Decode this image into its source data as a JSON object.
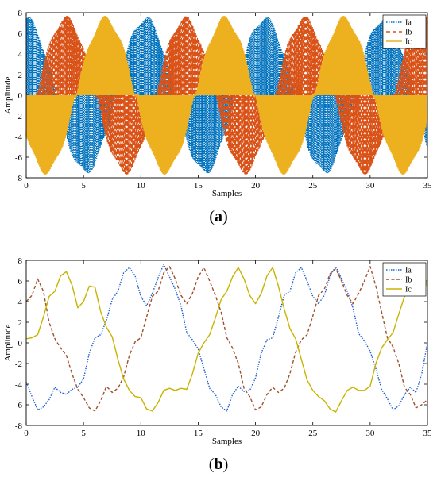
{
  "colors": {
    "ia": "#0072BD",
    "ib": "#D95319",
    "ic": "#EDB120",
    "ic_b": "#C8B400",
    "ib_b": "#A0522D",
    "ia_b": "#1F5FD0"
  },
  "chart_data": [
    {
      "type": "line",
      "caption": "a",
      "caption_text": "(a)",
      "xlabel": "Samples",
      "ylabel": "Amplitude",
      "xlim": [
        0,
        35
      ],
      "ylim": [
        -8,
        8
      ],
      "xticks": [
        0,
        5,
        10,
        15,
        20,
        25,
        30,
        35
      ],
      "yticks": [
        -8,
        -6,
        -4,
        -2,
        0,
        2,
        4,
        6,
        8
      ],
      "legend": "top-right",
      "series": [
        {
          "name": "Ia",
          "style": "dotted"
        },
        {
          "name": "Ib",
          "style": "dashed"
        },
        {
          "name": "Ic",
          "style": "solid"
        }
      ],
      "note": "rapidly switching (chopped) three-phase currents; each phase alternates between 0 and its envelope",
      "envelope_amplitude": 7.4
    },
    {
      "type": "line",
      "caption": "b",
      "caption_text": "(b)",
      "xlabel": "Samples",
      "ylabel": "Amplitude",
      "xlim": [
        0,
        35
      ],
      "ylim": [
        -8,
        8
      ],
      "xticks": [
        0,
        5,
        10,
        15,
        20,
        25,
        30,
        35
      ],
      "yticks": [
        -8,
        -6,
        -4,
        -2,
        0,
        2,
        4,
        6,
        8
      ],
      "legend": "top-right",
      "series": [
        {
          "name": "Ia",
          "style": "dotted",
          "x": [
            0,
            0.5,
            1,
            1.5,
            2,
            2.5,
            3,
            3.5,
            4,
            4.5,
            5,
            5.5,
            6,
            6.5,
            7,
            7.5,
            8,
            8.5,
            9,
            9.5,
            10,
            10.5,
            11,
            11.5,
            12,
            12.5,
            13,
            13.5,
            14,
            14.5,
            15,
            15.5,
            16,
            16.5,
            17,
            17.5,
            18,
            18.5,
            19,
            19.5,
            20,
            20.5,
            21,
            21.5,
            22,
            22.5,
            23,
            23.5,
            24,
            24.5,
            25,
            25.5,
            26,
            26.5,
            27,
            27.5,
            28,
            28.5,
            29,
            29.5,
            30,
            30.5,
            31,
            31.5,
            32,
            32.5,
            33,
            33.5,
            34,
            34.5,
            35
          ],
          "y": [
            -3.8,
            -5.2,
            -6.5,
            -6.2,
            -5.5,
            -4.3,
            -4.8,
            -5.0,
            -4.5,
            -4.3,
            -3.5,
            -1.0,
            0.5,
            0.8,
            2.2,
            4.2,
            5.0,
            6.8,
            7.3,
            6.5,
            4.5,
            3.6,
            4.8,
            6.3,
            7.6,
            6.4,
            5.2,
            3.6,
            1.0,
            0.3,
            -0.6,
            -2.5,
            -4.4,
            -5.0,
            -6.2,
            -6.6,
            -5.0,
            -4.2,
            -4.7,
            -4.6,
            -3.4,
            -1.0,
            0.3,
            0.5,
            2.5,
            4.6,
            5.0,
            6.8,
            7.3,
            6.0,
            4.5,
            3.8,
            4.6,
            6.5,
            7.4,
            6.2,
            5.0,
            3.4,
            0.9,
            0.2,
            -0.8,
            -2.5,
            -4.5,
            -5.4,
            -6.5,
            -6.1,
            -5.0,
            -4.3,
            -4.8,
            -3.0,
            0.0
          ]
        },
        {
          "name": "Ib",
          "style": "dashed",
          "x": [
            0,
            0.5,
            1,
            1.5,
            2,
            2.5,
            3,
            3.5,
            4,
            4.5,
            5,
            5.5,
            6,
            6.5,
            7,
            7.5,
            8,
            8.5,
            9,
            9.5,
            10,
            10.5,
            11,
            11.5,
            12,
            12.5,
            13,
            13.5,
            14,
            14.5,
            15,
            15.5,
            16,
            16.5,
            17,
            17.5,
            18,
            18.5,
            19,
            19.5,
            20,
            20.5,
            21,
            21.5,
            22,
            22.5,
            23,
            23.5,
            24,
            24.5,
            25,
            25.5,
            26,
            26.5,
            27,
            27.5,
            28,
            28.5,
            29,
            29.5,
            30,
            30.5,
            31,
            31.5,
            32,
            32.5,
            33,
            33.5,
            34,
            34.5,
            35
          ],
          "y": [
            4.0,
            4.6,
            6.2,
            5.0,
            2.0,
            0.4,
            -0.5,
            -1.2,
            -3.0,
            -4.5,
            -5.3,
            -6.3,
            -6.6,
            -5.6,
            -4.2,
            -4.8,
            -4.4,
            -3.3,
            -1.2,
            0.1,
            0.5,
            2.5,
            4.5,
            5.0,
            6.8,
            7.4,
            6.2,
            4.6,
            3.8,
            4.8,
            6.4,
            7.3,
            6.0,
            4.6,
            3.0,
            0.5,
            -0.5,
            -2.0,
            -4.4,
            -5.2,
            -6.5,
            -6.2,
            -5.0,
            -4.3,
            -4.8,
            -4.4,
            -3.0,
            -0.9,
            0.3,
            0.8,
            2.6,
            4.6,
            5.2,
            6.7,
            7.2,
            6.0,
            4.6,
            3.8,
            4.8,
            6.0,
            7.4,
            5.5,
            3.0,
            0.5,
            -0.4,
            -2.0,
            -4.3,
            -5.0,
            -6.3,
            -6.0,
            -5.5
          ]
        },
        {
          "name": "Ic",
          "style": "solid",
          "x": [
            0,
            0.5,
            1,
            1.5,
            2,
            2.5,
            3,
            3.5,
            4,
            4.5,
            5,
            5.5,
            6,
            6.5,
            7,
            7.5,
            8,
            8.5,
            9,
            9.5,
            10,
            10.5,
            11,
            11.5,
            12,
            12.5,
            13,
            13.5,
            14,
            14.5,
            15,
            15.5,
            16,
            16.5,
            17,
            17.5,
            18,
            18.5,
            19,
            19.5,
            20,
            20.5,
            21,
            21.5,
            22,
            22.5,
            23,
            23.5,
            24,
            24.5,
            25,
            25.5,
            26,
            26.5,
            27,
            27.5,
            28,
            28.5,
            29,
            29.5,
            30,
            30.5,
            31,
            31.5,
            32,
            32.5,
            33,
            33.5,
            34,
            34.5,
            35
          ],
          "y": [
            0.4,
            0.5,
            0.8,
            2.5,
            4.5,
            5.0,
            6.5,
            6.9,
            5.6,
            3.4,
            4.0,
            5.5,
            5.4,
            3.0,
            1.5,
            0.6,
            -1.6,
            -3.5,
            -4.6,
            -5.2,
            -5.3,
            -6.4,
            -6.6,
            -5.8,
            -4.6,
            -4.4,
            -4.6,
            -4.4,
            -4.5,
            -3.0,
            -1.0,
            0.0,
            0.8,
            2.4,
            4.2,
            5.0,
            6.4,
            7.3,
            6.2,
            4.6,
            3.8,
            4.8,
            6.5,
            7.3,
            5.5,
            3.3,
            1.4,
            0.4,
            -1.6,
            -3.6,
            -4.6,
            -5.2,
            -5.6,
            -6.4,
            -6.7,
            -5.6,
            -4.6,
            -4.3,
            -4.6,
            -4.6,
            -4.2,
            -2.0,
            -0.5,
            0.3,
            1.0,
            2.8,
            4.5,
            5.2,
            6.4,
            7.2,
            5.4
          ]
        }
      ]
    }
  ]
}
